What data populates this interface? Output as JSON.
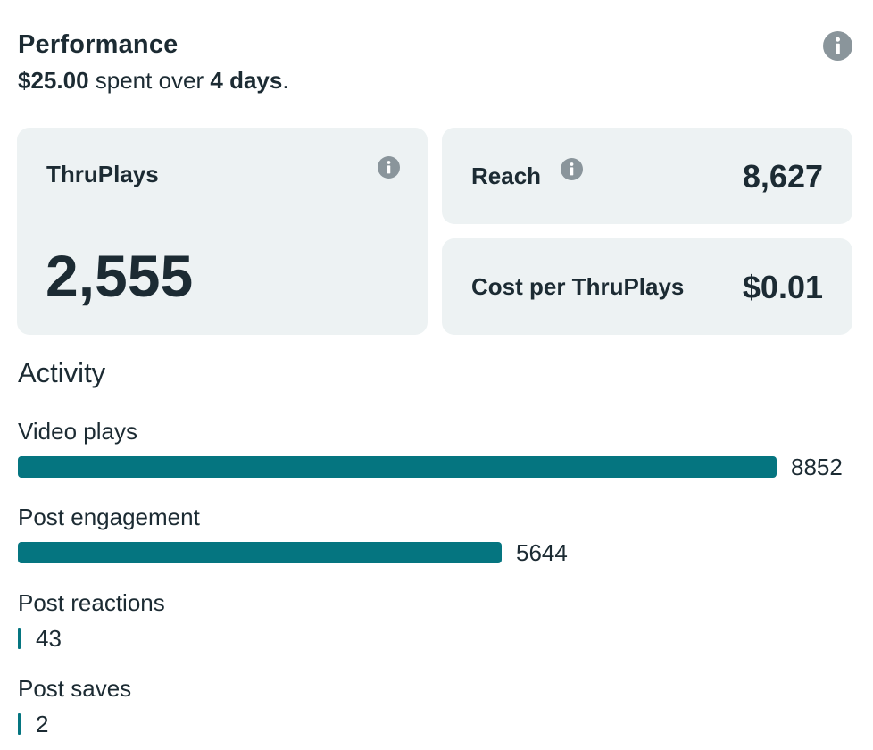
{
  "header": {
    "title": "Performance",
    "spend_amount": "$25.00",
    "spend_text": " spent over ",
    "spend_duration": "4 days",
    "spend_end": "."
  },
  "cards": {
    "thruplays": {
      "label": "ThruPlays",
      "value": "2,555"
    },
    "reach": {
      "label": "Reach",
      "value": "8,627"
    },
    "cost": {
      "label": "Cost per ThruPlays",
      "value": "$0.01"
    }
  },
  "activity": {
    "title": "Activity",
    "max_value": 8852,
    "items": [
      {
        "label": "Video plays",
        "value": 8852,
        "display": "8852"
      },
      {
        "label": "Post engagement",
        "value": 5644,
        "display": "5644"
      },
      {
        "label": "Post reactions",
        "value": 43,
        "display": "43"
      },
      {
        "label": "Post saves",
        "value": 2,
        "display": "2"
      }
    ]
  },
  "colors": {
    "accent": "#057580",
    "card_bg": "#edf2f3",
    "text": "#1c2b33",
    "icon": "#8a959b"
  },
  "icons": {
    "info": "info-icon"
  }
}
